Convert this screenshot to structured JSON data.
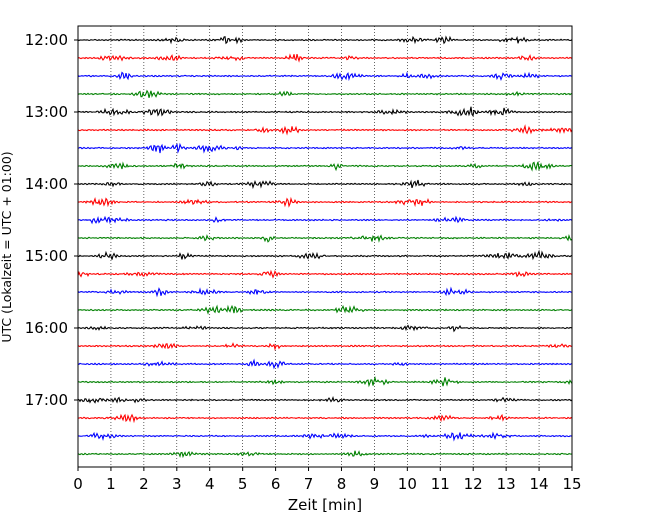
{
  "chart_data": {
    "type": "line",
    "xlabel": "Zeit  [min]",
    "ylabel": "UTC (Lokalzeit = UTC + 01:00)",
    "xlim": [
      0,
      15
    ],
    "x_ticks": [
      "0",
      "1",
      "2",
      "3",
      "4",
      "5",
      "6",
      "7",
      "8",
      "9",
      "10",
      "11",
      "12",
      "13",
      "14",
      "15"
    ],
    "y_ticks": [
      "12:00",
      "13:00",
      "14:00",
      "15:00",
      "16:00",
      "17:00"
    ],
    "trace_interval_minutes": 15,
    "first_trace": "12:00",
    "trace_count": 24,
    "trace_colors": [
      "#000000",
      "#ff0000",
      "#0000ff",
      "#008000"
    ],
    "grid": "vertical dotted at each minute",
    "traces": [
      {
        "start": "12:00",
        "color": "#000000"
      },
      {
        "start": "12:15",
        "color": "#ff0000"
      },
      {
        "start": "12:30",
        "color": "#0000ff"
      },
      {
        "start": "12:45",
        "color": "#008000"
      },
      {
        "start": "13:00",
        "color": "#000000"
      },
      {
        "start": "13:15",
        "color": "#ff0000"
      },
      {
        "start": "13:30",
        "color": "#0000ff"
      },
      {
        "start": "13:45",
        "color": "#008000"
      },
      {
        "start": "14:00",
        "color": "#000000"
      },
      {
        "start": "14:15",
        "color": "#ff0000"
      },
      {
        "start": "14:30",
        "color": "#0000ff"
      },
      {
        "start": "14:45",
        "color": "#008000"
      },
      {
        "start": "15:00",
        "color": "#000000"
      },
      {
        "start": "15:15",
        "color": "#ff0000"
      },
      {
        "start": "15:30",
        "color": "#0000ff"
      },
      {
        "start": "15:45",
        "color": "#008000"
      },
      {
        "start": "16:00",
        "color": "#000000"
      },
      {
        "start": "16:15",
        "color": "#ff0000"
      },
      {
        "start": "16:30",
        "color": "#0000ff"
      },
      {
        "start": "16:45",
        "color": "#008000"
      },
      {
        "start": "17:00",
        "color": "#000000"
      },
      {
        "start": "17:15",
        "color": "#ff0000"
      },
      {
        "start": "17:30",
        "color": "#0000ff"
      },
      {
        "start": "17:45",
        "color": "#008000"
      }
    ]
  }
}
